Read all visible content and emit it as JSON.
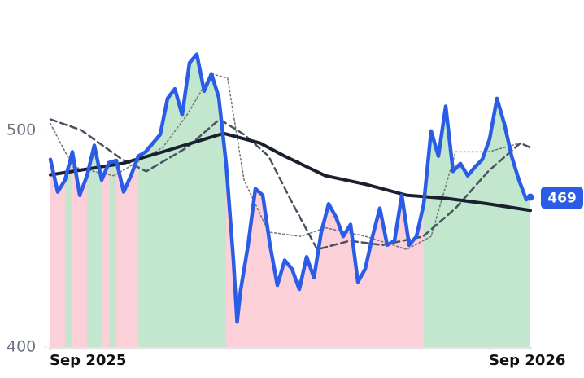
{
  "chart_data": {
    "type": "line",
    "ylim": [
      400,
      560
    ],
    "yticks": [
      400,
      500
    ],
    "xlim": [
      -0.05,
      13.15
    ],
    "xticks": [
      {
        "value": 0,
        "label": "Sep 2025"
      },
      {
        "value": 12,
        "label": "Sep 2026"
      }
    ],
    "series": [
      {
        "color": "#2b5ce6",
        "x": [
          0,
          0.2,
          0.4,
          0.6,
          0.8,
          1.0,
          1.2,
          1.4,
          1.6,
          1.8,
          2.0,
          2.2,
          2.4,
          2.6,
          2.8,
          3.0,
          3.2,
          3.4,
          3.6,
          3.8,
          4.0,
          4.2,
          4.4,
          4.6,
          4.8,
          5.0,
          5.1,
          5.2,
          5.4,
          5.6,
          5.8,
          6.0,
          6.2,
          6.4,
          6.6,
          6.8,
          7.0,
          7.2,
          7.4,
          7.6,
          7.8,
          8.0,
          8.2,
          8.4,
          8.6,
          8.8,
          9.0,
          9.2,
          9.4,
          9.6,
          9.8,
          10.0,
          10.2,
          10.4,
          10.6,
          10.8,
          11.0,
          11.2,
          11.4,
          11.6,
          11.8,
          12.0,
          12.2,
          12.4,
          12.6,
          12.8,
          13.0,
          13.1
        ],
        "values": [
          486.5,
          471.5,
          477,
          490,
          470,
          479,
          493,
          477,
          485,
          486,
          471.5,
          479,
          488,
          490,
          494,
          498,
          514.6,
          519,
          507,
          531,
          535,
          518,
          526,
          515,
          484.6,
          440,
          411.6,
          426.6,
          447,
          473,
          470,
          447,
          428.5,
          440,
          436,
          426.6,
          441.6,
          432,
          453,
          466,
          460,
          451,
          456.5,
          430,
          436,
          451,
          464,
          447,
          449,
          470,
          447,
          451,
          466,
          499.6,
          488,
          511,
          481,
          484.6,
          479,
          483,
          486.5,
          496,
          514.6,
          503,
          488,
          477,
          468,
          469
        ]
      },
      {
        "color": "#1a2030",
        "x": [
          0,
          1.96,
          3.07,
          4.73,
          5.73,
          6.4,
          7.51,
          8.62,
          9.73,
          10.84,
          11.96,
          13.11
        ],
        "values": [
          479.4,
          484.6,
          490,
          498.5,
          494,
          488,
          479,
          475,
          470,
          468.5,
          466,
          463
        ]
      },
      {
        "color": "#4a5160",
        "x": [
          0,
          0.84,
          1.96,
          2.62,
          3.73,
          4.62,
          5.29,
          5.96,
          6.62,
          7.29,
          8.18,
          9.07,
          10.18,
          11.07,
          11.96,
          12.84,
          13.11
        ],
        "values": [
          505,
          500,
          486.5,
          481,
          492,
          505,
          498,
          488,
          466,
          445,
          449,
          447,
          451,
          464,
          481,
          494,
          492
        ]
      },
      {
        "color": "#777777",
        "x": [
          0,
          0.62,
          1.73,
          3.07,
          3.73,
          4.4,
          4.84,
          5.29,
          5.96,
          6.84,
          7.51,
          8.62,
          9.73,
          10.4,
          11.07,
          11.96,
          12.84,
          13.11
        ],
        "values": [
          503,
          483,
          479,
          492,
          507,
          526,
          524,
          477,
          453,
          451,
          455,
          451,
          445,
          451,
          490,
          490,
          494,
          492
        ]
      }
    ]
  }
}
